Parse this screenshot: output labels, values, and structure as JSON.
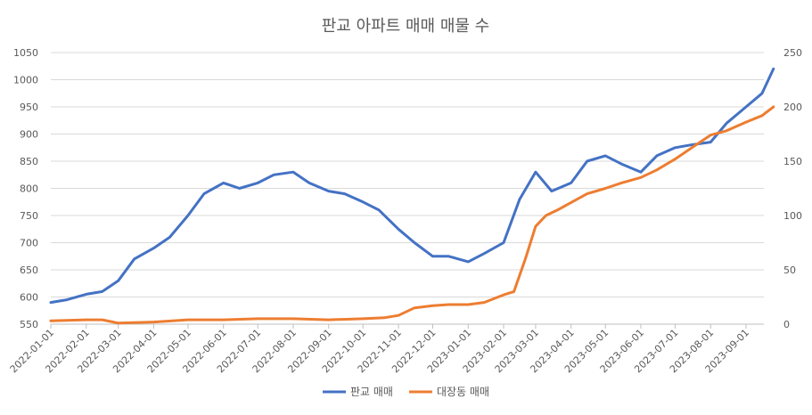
{
  "chart_data": {
    "type": "line",
    "title": "판교 아파트 매매 매물 수",
    "xlabel": "",
    "ylabel": "",
    "x_ticks": [
      "2022-01-01",
      "2022-02-01",
      "2022-03-01",
      "2022-04-01",
      "2022-05-01",
      "2022-06-01",
      "2022-07-01",
      "2022-08-01",
      "2022-09-01",
      "2022-10-01",
      "2022-11-01",
      "2022-12-01",
      "2023-01-01",
      "2023-02-01",
      "2023-03-01",
      "2023-04-01",
      "2023-05-01",
      "2023-06-01",
      "2023-07-01",
      "2023-08-01",
      "2023-09-01"
    ],
    "y_left": {
      "ylim": [
        550,
        1050
      ],
      "ticks": [
        550,
        600,
        650,
        700,
        750,
        800,
        850,
        900,
        950,
        1000,
        1050
      ]
    },
    "y_right": {
      "ylim": [
        0,
        250
      ],
      "ticks": [
        0,
        50,
        100,
        150,
        200,
        250
      ]
    },
    "grid": true,
    "legend_position": "bottom",
    "series": [
      {
        "name": "판교 매매",
        "axis": "left",
        "color": "#4472C4",
        "x": [
          "2022-01-01",
          "2022-01-15",
          "2022-02-01",
          "2022-02-15",
          "2022-03-01",
          "2022-03-15",
          "2022-04-01",
          "2022-04-15",
          "2022-05-01",
          "2022-05-15",
          "2022-06-01",
          "2022-06-15",
          "2022-07-01",
          "2022-07-15",
          "2022-08-01",
          "2022-08-15",
          "2022-09-01",
          "2022-09-15",
          "2022-10-01",
          "2022-10-15",
          "2022-11-01",
          "2022-11-15",
          "2022-12-01",
          "2022-12-15",
          "2023-01-01",
          "2023-01-15",
          "2023-02-01",
          "2023-02-15",
          "2023-03-01",
          "2023-03-15",
          "2023-04-01",
          "2023-04-15",
          "2023-05-01",
          "2023-05-15",
          "2023-06-01",
          "2023-06-15",
          "2023-07-01",
          "2023-07-15",
          "2023-08-01",
          "2023-08-15",
          "2023-09-01",
          "2023-09-15",
          "2023-09-25"
        ],
        "values": [
          590,
          595,
          605,
          610,
          630,
          670,
          690,
          710,
          750,
          790,
          810,
          800,
          810,
          825,
          830,
          810,
          795,
          790,
          775,
          760,
          725,
          700,
          675,
          675,
          665,
          680,
          700,
          780,
          830,
          795,
          810,
          850,
          860,
          845,
          830,
          860,
          875,
          880,
          885,
          920,
          950,
          975,
          1020
        ]
      },
      {
        "name": "대장동 매매",
        "axis": "right",
        "color": "#ED7D31",
        "x": [
          "2022-01-01",
          "2022-02-01",
          "2022-02-15",
          "2022-03-01",
          "2022-04-01",
          "2022-05-01",
          "2022-06-01",
          "2022-07-01",
          "2022-08-01",
          "2022-09-01",
          "2022-10-01",
          "2022-10-20",
          "2022-11-01",
          "2022-11-15",
          "2022-12-01",
          "2022-12-15",
          "2023-01-01",
          "2023-01-15",
          "2023-02-01",
          "2023-02-10",
          "2023-02-20",
          "2023-03-01",
          "2023-03-10",
          "2023-03-20",
          "2023-04-01",
          "2023-04-15",
          "2023-05-01",
          "2023-05-15",
          "2023-06-01",
          "2023-06-15",
          "2023-07-01",
          "2023-07-15",
          "2023-08-01",
          "2023-08-15",
          "2023-09-01",
          "2023-09-15",
          "2023-09-25"
        ],
        "values": [
          3,
          4,
          4,
          1,
          2,
          4,
          4,
          5,
          5,
          4,
          5,
          6,
          8,
          15,
          17,
          18,
          18,
          20,
          27,
          30,
          60,
          90,
          100,
          105,
          112,
          120,
          125,
          130,
          135,
          142,
          152,
          162,
          174,
          178,
          186,
          192,
          200
        ]
      }
    ]
  }
}
